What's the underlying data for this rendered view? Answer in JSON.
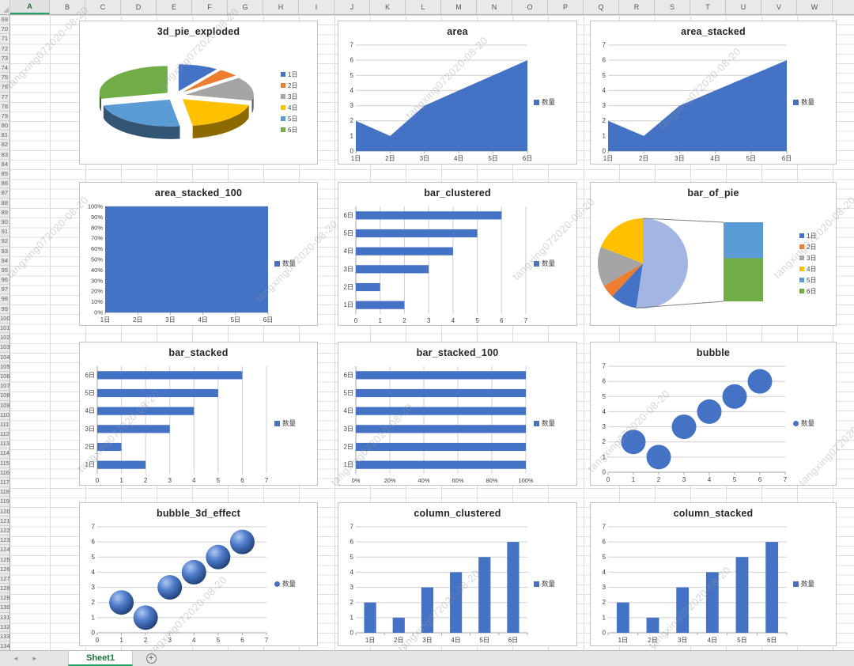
{
  "app": {
    "watermark_text": "tangxing072020-08-20"
  },
  "spreadsheet": {
    "column_headers": [
      "A",
      "B",
      "C",
      "D",
      "E",
      "F",
      "G",
      "H",
      "I",
      "J",
      "K",
      "L",
      "M",
      "N",
      "O",
      "P",
      "Q",
      "R",
      "S",
      "T",
      "U",
      "V",
      "W"
    ],
    "selected_column": "A",
    "first_row": 69,
    "last_row": 134
  },
  "tab_bar": {
    "nav_left": "◄",
    "nav_right": "►",
    "sheet_name": "Sheet1",
    "add_sheet_label": "+"
  },
  "palette": {
    "series_blue": "#4472C4",
    "office_accents": [
      "#4472C4",
      "#ED7D31",
      "#A5A5A5",
      "#FFC000",
      "#5B9BD5",
      "#70AD47"
    ],
    "pie_other_blue": "#A3B5E2",
    "gridline": "#CFCFCF",
    "axis_line": "#A6A6A6",
    "excel_green": "#217346"
  },
  "chart_data": [
    {
      "type": "pie_3d_exploded",
      "title": "3d_pie_exploded",
      "categories": [
        "1日",
        "2日",
        "3日",
        "4日",
        "5日",
        "6日"
      ],
      "values": [
        2,
        1,
        3,
        4,
        5,
        6
      ],
      "colors": [
        "#4472C4",
        "#ED7D31",
        "#A5A5A5",
        "#FFC000",
        "#5B9BD5",
        "#70AD47"
      ],
      "legend_position": "right"
    },
    {
      "type": "area",
      "title": "area",
      "categories": [
        "1日",
        "2日",
        "3日",
        "4日",
        "5日",
        "6日"
      ],
      "series": [
        {
          "name": "数量",
          "values": [
            2,
            1,
            3,
            4,
            5,
            6
          ]
        }
      ],
      "ylim": [
        0,
        7
      ],
      "yticks": [
        0,
        1,
        2,
        3,
        4,
        5,
        6,
        7
      ],
      "color": "#4472C4",
      "legend_position": "right"
    },
    {
      "type": "area",
      "title": "area_stacked",
      "categories": [
        "1日",
        "2日",
        "3日",
        "4日",
        "5日",
        "6日"
      ],
      "series": [
        {
          "name": "数量",
          "values": [
            2,
            1,
            3,
            4,
            5,
            6
          ]
        }
      ],
      "ylim": [
        0,
        7
      ],
      "yticks": [
        0,
        1,
        2,
        3,
        4,
        5,
        6,
        7
      ],
      "color": "#4472C4",
      "legend_position": "right"
    },
    {
      "type": "area_100",
      "title": "area_stacked_100",
      "categories": [
        "1日",
        "2日",
        "3日",
        "4日",
        "5日",
        "6日"
      ],
      "series": [
        {
          "name": "数量",
          "values_pct": [
            100,
            100,
            100,
            100,
            100,
            100
          ]
        }
      ],
      "ylim": [
        0,
        100
      ],
      "ytick_labels": [
        "0%",
        "10%",
        "20%",
        "30%",
        "40%",
        "50%",
        "60%",
        "70%",
        "80%",
        "90%",
        "100%"
      ],
      "color": "#4472C4",
      "legend_position": "right"
    },
    {
      "type": "bar",
      "title": "bar_clustered",
      "categories": [
        "1日",
        "2日",
        "3日",
        "4日",
        "5日",
        "6日"
      ],
      "series": [
        {
          "name": "数量",
          "values": [
            2,
            1,
            3,
            4,
            5,
            6
          ]
        }
      ],
      "xlim": [
        0,
        7
      ],
      "xticks": [
        0,
        1,
        2,
        3,
        4,
        5,
        6,
        7
      ],
      "color": "#4472C4",
      "legend_position": "right"
    },
    {
      "type": "bar_of_pie",
      "title": "bar_of_pie",
      "categories": [
        "1日",
        "2日",
        "3日",
        "4日",
        "5日",
        "6日"
      ],
      "values": [
        2,
        1,
        3,
        4,
        5,
        6
      ],
      "pie_values": [
        2,
        1,
        3,
        4
      ],
      "other_total": 11,
      "bar_values": [
        5,
        6
      ],
      "bar_colors": [
        "#5B9BD5",
        "#70AD47"
      ],
      "other_color": "#A3B5E2",
      "colors": [
        "#4472C4",
        "#ED7D31",
        "#A5A5A5",
        "#FFC000",
        "#5B9BD5",
        "#70AD47"
      ],
      "legend_position": "right"
    },
    {
      "type": "bar",
      "title": "bar_stacked",
      "categories": [
        "1日",
        "2日",
        "3日",
        "4日",
        "5日",
        "6日"
      ],
      "series": [
        {
          "name": "数量",
          "values": [
            2,
            1,
            3,
            4,
            5,
            6
          ]
        }
      ],
      "xlim": [
        0,
        7
      ],
      "xticks": [
        0,
        1,
        2,
        3,
        4,
        5,
        6,
        7
      ],
      "color": "#4472C4",
      "legend_position": "right"
    },
    {
      "type": "bar_100",
      "title": "bar_stacked_100",
      "categories": [
        "1日",
        "2日",
        "3日",
        "4日",
        "5日",
        "6日"
      ],
      "series": [
        {
          "name": "数量",
          "values_pct": [
            100,
            100,
            100,
            100,
            100,
            100
          ]
        }
      ],
      "xlim": [
        0,
        100
      ],
      "xtick_labels": [
        "0%",
        "20%",
        "40%",
        "60%",
        "80%",
        "100%"
      ],
      "color": "#4472C4",
      "legend_position": "right"
    },
    {
      "type": "bubble",
      "title": "bubble",
      "points": [
        [
          1,
          2
        ],
        [
          2,
          1
        ],
        [
          3,
          3
        ],
        [
          4,
          4
        ],
        [
          5,
          5
        ],
        [
          6,
          6
        ]
      ],
      "series_name": "数量",
      "xlim": [
        0,
        7
      ],
      "ylim": [
        0,
        7
      ],
      "xticks": [
        0,
        1,
        2,
        3,
        4,
        5,
        6,
        7
      ],
      "yticks": [
        0,
        1,
        2,
        3,
        4,
        5,
        6,
        7
      ],
      "color": "#4472C4",
      "legend_position": "right"
    },
    {
      "type": "bubble_3d",
      "title": "bubble_3d_effect",
      "points": [
        [
          1,
          2
        ],
        [
          2,
          1
        ],
        [
          3,
          3
        ],
        [
          4,
          4
        ],
        [
          5,
          5
        ],
        [
          6,
          6
        ]
      ],
      "series_name": "数量",
      "xlim": [
        0,
        7
      ],
      "ylim": [
        0,
        7
      ],
      "xticks": [
        0,
        1,
        2,
        3,
        4,
        5,
        6,
        7
      ],
      "yticks": [
        0,
        1,
        2,
        3,
        4,
        5,
        6,
        7
      ],
      "color": "#4472C4",
      "legend_position": "right"
    },
    {
      "type": "column",
      "title": "column_clustered",
      "categories": [
        "1日",
        "2日",
        "3日",
        "4日",
        "5日",
        "6日"
      ],
      "series": [
        {
          "name": "数量",
          "values": [
            2,
            1,
            3,
            4,
            5,
            6
          ]
        }
      ],
      "ylim": [
        0,
        7
      ],
      "yticks": [
        0,
        1,
        2,
        3,
        4,
        5,
        6,
        7
      ],
      "color": "#4472C4",
      "legend_position": "right"
    },
    {
      "type": "column",
      "title": "column_stacked",
      "categories": [
        "1日",
        "2日",
        "3日",
        "4日",
        "5日",
        "6日"
      ],
      "series": [
        {
          "name": "数量",
          "values": [
            2,
            1,
            3,
            4,
            5,
            6
          ]
        }
      ],
      "ylim": [
        0,
        7
      ],
      "yticks": [
        0,
        1,
        2,
        3,
        4,
        5,
        6,
        7
      ],
      "color": "#4472C4",
      "legend_position": "right"
    }
  ]
}
